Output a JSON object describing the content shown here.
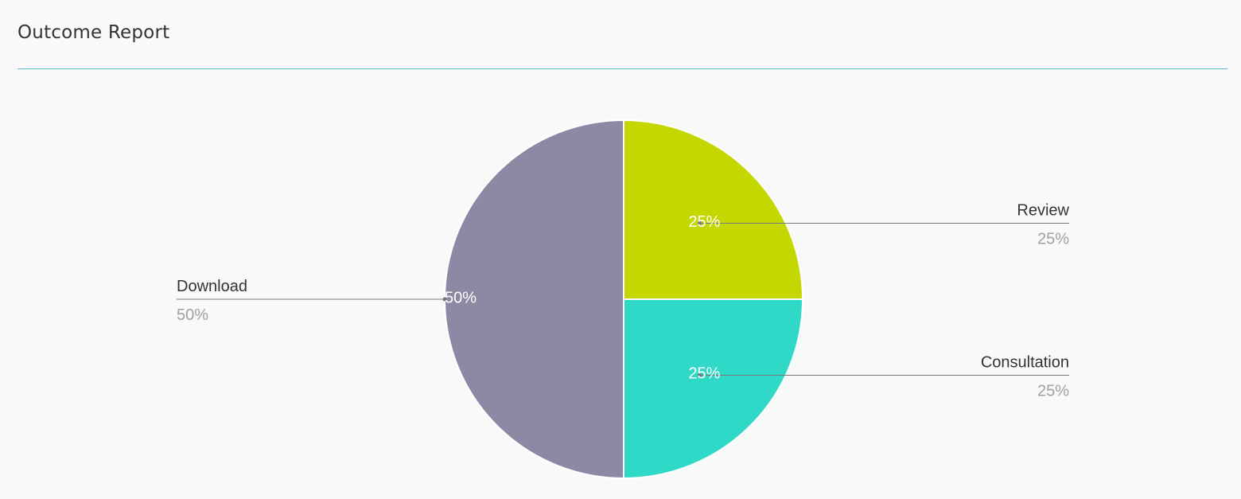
{
  "header": {
    "title": "Outcome Report"
  },
  "chart_data": {
    "type": "pie",
    "title": "",
    "slices": [
      {
        "label": "Review",
        "value": 25,
        "percent_label": "25%",
        "color": "#c5d700"
      },
      {
        "label": "Consultation",
        "value": 25,
        "percent_label": "25%",
        "color": "#30d9c7"
      },
      {
        "label": "Download",
        "value": 50,
        "percent_label": "50%",
        "color": "#8c89a4"
      }
    ]
  },
  "colors": {
    "title_rule": "#5bb8cc",
    "leader_line": "#777777",
    "slice_border": "#ffffff"
  }
}
